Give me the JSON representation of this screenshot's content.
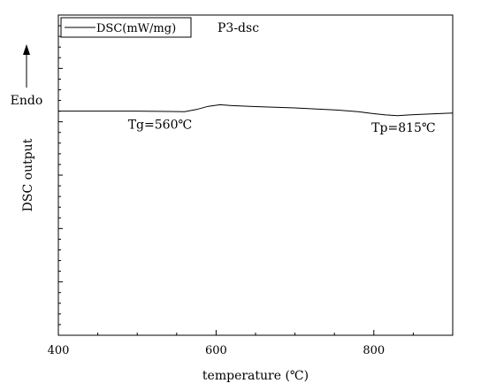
{
  "chart_data": {
    "type": "line",
    "title": "P3-dsc",
    "xlabel": "temperature (℃)",
    "ylabel": "DSC output",
    "endo_label": "Endo",
    "xlim": [
      400,
      900
    ],
    "ylim": [
      0,
      1
    ],
    "x_ticks": [
      400,
      600,
      800
    ],
    "x_tick_labels": [
      "400",
      "600",
      "800"
    ],
    "grid": false,
    "legend": {
      "position": "top-left",
      "entries": [
        "DSC(mW/mg)"
      ]
    },
    "series": [
      {
        "name": "DSC(mW/mg)",
        "x": [
          400,
          450,
          500,
          540,
          560,
          575,
          590,
          605,
          620,
          650,
          700,
          750,
          780,
          800,
          815,
          830,
          845,
          860,
          880,
          900
        ],
        "y": [
          0.7,
          0.7,
          0.7,
          0.699,
          0.698,
          0.705,
          0.715,
          0.72,
          0.717,
          0.714,
          0.71,
          0.704,
          0.698,
          0.692,
          0.688,
          0.686,
          0.688,
          0.69,
          0.692,
          0.694
        ]
      }
    ],
    "annotations": [
      {
        "text": "Tg=560℃",
        "x": 560,
        "y": 0.698
      },
      {
        "text": "Tp=815℃",
        "x": 815,
        "y": 0.688
      }
    ]
  }
}
